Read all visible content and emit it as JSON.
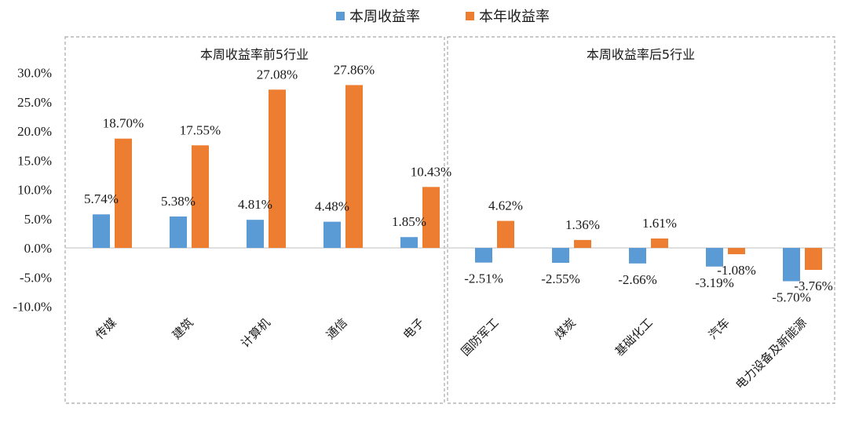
{
  "chart_data": {
    "type": "bar",
    "legend": {
      "placement": "top-center"
    },
    "series": [
      {
        "name": "本周收益率",
        "color": "#5b9bd5"
      },
      {
        "name": "本年收益率",
        "color": "#ed7d31"
      }
    ],
    "ylim": [
      -10,
      30
    ],
    "yticks": [
      30,
      25,
      20,
      15,
      10,
      5,
      0,
      -5,
      -10
    ],
    "ytick_labels": [
      "30.0%",
      "25.0%",
      "20.0%",
      "15.0%",
      "10.0%",
      "5.0%",
      "0.0%",
      "-5.0%",
      "-10.0%"
    ],
    "grid": false,
    "panels": [
      {
        "title": "本周收益率前5行业",
        "categories": [
          "传媒",
          "建筑",
          "计算机",
          "通信",
          "电子"
        ],
        "weekly": [
          5.74,
          5.38,
          4.81,
          4.48,
          1.85
        ],
        "ytd": [
          18.7,
          17.55,
          27.08,
          27.86,
          10.43
        ],
        "weekly_labels": [
          "5.74%",
          "5.38%",
          "4.81%",
          "4.48%",
          "1.85%"
        ],
        "ytd_labels": [
          "18.70%",
          "17.55%",
          "27.08%",
          "27.86%",
          "10.43%"
        ]
      },
      {
        "title": "本周收益率后5行业",
        "categories": [
          "国防军工",
          "煤炭",
          "基础化工",
          "汽车",
          "电力设备及新能源"
        ],
        "weekly": [
          -2.51,
          -2.55,
          -2.66,
          -3.19,
          -5.7
        ],
        "ytd": [
          4.62,
          1.36,
          1.61,
          -1.08,
          -3.76
        ],
        "weekly_labels": [
          "-2.51%",
          "-2.55%",
          "-2.66%",
          "-3.19%",
          "-5.70%"
        ],
        "ytd_labels": [
          "4.62%",
          "1.36%",
          "1.61%",
          "-1.08%",
          "-3.76%"
        ]
      }
    ]
  }
}
